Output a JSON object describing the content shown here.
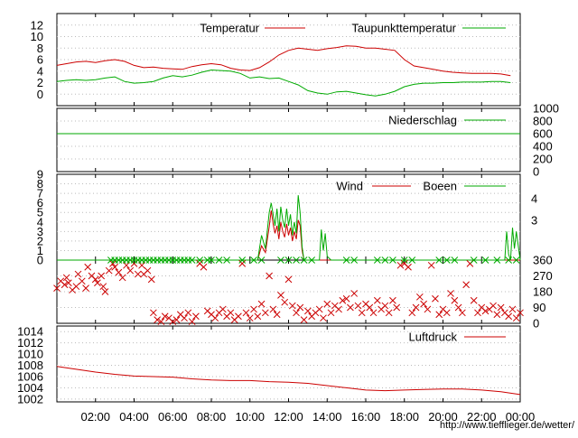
{
  "chart_data": [
    {
      "type": "line",
      "panel": "temperature",
      "series": [
        {
          "name": "Temperatur",
          "color": "#cc0000",
          "x": [
            0,
            0.5,
            1,
            1.5,
            2,
            2.5,
            3,
            3.5,
            4,
            4.5,
            5,
            5.5,
            6,
            6.5,
            7,
            7.5,
            8,
            8.5,
            9,
            9.5,
            10,
            10.5,
            11,
            11.5,
            12,
            12.5,
            13,
            13.5,
            14,
            14.5,
            15,
            15.5,
            16,
            16.5,
            17,
            17.5,
            18,
            18.5,
            19,
            19.5,
            20,
            20.5,
            21,
            21.5,
            22,
            22.5,
            23,
            23.5
          ],
          "values": [
            5.0,
            5.3,
            5.6,
            5.7,
            5.5,
            5.8,
            6.0,
            5.7,
            5.0,
            4.6,
            4.7,
            4.5,
            4.4,
            4.3,
            4.8,
            5.1,
            5.3,
            5.1,
            4.5,
            4.2,
            4.1,
            4.6,
            5.6,
            6.8,
            7.6,
            8.0,
            7.8,
            7.6,
            7.9,
            8.1,
            8.4,
            8.3,
            8.0,
            8.0,
            7.8,
            7.6,
            6.0,
            4.9,
            4.6,
            4.3,
            4.0,
            3.8,
            3.7,
            3.6,
            3.6,
            3.6,
            3.5,
            3.2
          ]
        },
        {
          "name": "Taupunkttemperatur",
          "color": "#00aa00",
          "x": [
            0,
            0.5,
            1,
            1.5,
            2,
            2.5,
            3,
            3.5,
            4,
            4.5,
            5,
            5.5,
            6,
            6.5,
            7,
            7.5,
            8,
            8.5,
            9,
            9.5,
            10,
            10.5,
            11,
            11.5,
            12,
            12.5,
            13,
            13.5,
            14,
            14.5,
            15,
            15.5,
            16,
            16.5,
            17,
            17.5,
            18,
            18.5,
            19,
            19.5,
            20,
            20.5,
            21,
            21.5,
            22,
            22.5,
            23,
            23.5
          ],
          "values": [
            2.2,
            2.4,
            2.5,
            2.4,
            2.5,
            2.8,
            3.0,
            2.2,
            1.9,
            2.0,
            2.2,
            2.8,
            3.2,
            3.0,
            3.3,
            3.8,
            4.2,
            4.1,
            4.0,
            3.6,
            2.8,
            3.0,
            2.7,
            2.8,
            2.2,
            1.6,
            0.6,
            0.2,
            0.0,
            0.4,
            0.5,
            0.2,
            -0.1,
            -0.3,
            0.0,
            0.5,
            1.3,
            1.7,
            1.9,
            1.9,
            2.0,
            2.0,
            2.1,
            2.1,
            2.1,
            2.2,
            2.2,
            2.0
          ]
        }
      ],
      "ylim": [
        -2,
        14
      ],
      "yticks": [
        0,
        2,
        4,
        6,
        8,
        10,
        12
      ],
      "grid": true,
      "legend": "top"
    },
    {
      "type": "line",
      "panel": "precipitation",
      "series": [
        {
          "name": "Niederschlag",
          "color": "#00aa00",
          "x": [
            0,
            24
          ],
          "values": [
            600,
            600
          ]
        }
      ],
      "ylim": [
        0,
        1000
      ],
      "yticks": [
        0,
        200,
        400,
        600,
        800,
        1000
      ],
      "yaxis_side": "right",
      "legend": "top-right"
    },
    {
      "type": "line",
      "panel": "wind",
      "series": [
        {
          "name": "Wind",
          "color": "#cc0000",
          "x": [
            0,
            10.4,
            10.6,
            10.8,
            11.0,
            11.1,
            11.2,
            11.3,
            11.4,
            11.5,
            11.6,
            11.7,
            11.8,
            11.9,
            12.0,
            12.1,
            12.2,
            12.3,
            12.4,
            12.5,
            12.6,
            12.7,
            12.8,
            13.0,
            24
          ],
          "values": [
            0,
            0,
            1.5,
            0.8,
            3.5,
            5.2,
            3.8,
            2.8,
            3.6,
            2.2,
            4.0,
            3.0,
            2.4,
            3.8,
            2.6,
            3.4,
            2.0,
            3.0,
            2.2,
            4.2,
            3.6,
            1.0,
            0,
            0,
            0
          ]
        },
        {
          "name": "Boeen",
          "color": "#00aa00",
          "x": [
            0,
            10.4,
            10.6,
            10.8,
            11.0,
            11.1,
            11.2,
            11.3,
            11.4,
            11.5,
            11.6,
            11.7,
            11.8,
            11.9,
            12.0,
            12.1,
            12.2,
            12.3,
            12.4,
            12.5,
            12.6,
            12.7,
            12.8,
            13.0,
            13.6,
            13.7,
            13.8,
            13.9,
            14.0,
            14.2,
            23.2,
            23.3,
            23.4,
            23.5,
            23.6,
            23.7,
            23.8,
            24
          ],
          "values": [
            0,
            0,
            2.6,
            1.2,
            5.0,
            6.0,
            4.8,
            3.6,
            5.4,
            3.0,
            5.6,
            4.2,
            3.4,
            5.4,
            3.6,
            4.8,
            2.6,
            4.0,
            2.8,
            6.8,
            5.0,
            1.4,
            0,
            0,
            0,
            3.2,
            1.0,
            2.8,
            0.4,
            0,
            0,
            3.0,
            0.6,
            0,
            3.4,
            1.2,
            3.0,
            0
          ]
        }
      ],
      "ylim": [
        0,
        9
      ],
      "yticks": [
        0,
        1,
        2,
        3,
        4,
        5,
        6,
        7,
        8,
        9
      ],
      "right_scale_labels": [
        "4",
        "3"
      ],
      "legend": "top-right"
    },
    {
      "type": "scatter",
      "panel": "wind-direction",
      "series": [
        {
          "name": "",
          "color": "#cc0000",
          "x": [
            0.0,
            0.2,
            0.4,
            0.5,
            0.6,
            0.8,
            1.0,
            1.1,
            1.3,
            1.5,
            1.6,
            1.8,
            2.0,
            2.1,
            2.3,
            2.4,
            2.5,
            2.7,
            2.9,
            3.0,
            3.2,
            3.4,
            3.6,
            3.8,
            4.0,
            4.2,
            4.4,
            4.5,
            4.7,
            4.9,
            5.0,
            5.2,
            5.4,
            5.6,
            5.8,
            6.0,
            6.2,
            6.4,
            6.6,
            6.8,
            7.0,
            7.2,
            7.4,
            7.6,
            7.8,
            8.0,
            8.2,
            8.4,
            8.6,
            8.8,
            9.0,
            9.2,
            9.4,
            9.6,
            9.8,
            10.0,
            10.2,
            10.4,
            10.6,
            10.8,
            11.0,
            11.2,
            11.4,
            11.6,
            11.8,
            12.0,
            12.2,
            12.4,
            12.6,
            12.8,
            13.0,
            13.2,
            13.4,
            13.6,
            13.8,
            14.0,
            14.2,
            14.4,
            14.6,
            14.8,
            15.0,
            15.2,
            15.4,
            15.6,
            15.8,
            16.0,
            16.2,
            16.4,
            16.6,
            16.8,
            17.0,
            17.2,
            17.4,
            17.6,
            17.8,
            18.0,
            18.2,
            18.4,
            18.6,
            18.8,
            19.0,
            19.2,
            19.4,
            19.6,
            19.8,
            20.0,
            20.2,
            20.4,
            20.6,
            20.8,
            21.0,
            21.2,
            21.4,
            21.6,
            21.8,
            22.0,
            22.2,
            22.4,
            22.6,
            22.8,
            23.0,
            23.2,
            23.4,
            23.6,
            23.8,
            24.0
          ],
          "values": [
            200,
            240,
            220,
            260,
            230,
            190,
            210,
            280,
            240,
            200,
            320,
            270,
            250,
            230,
            270,
            210,
            180,
            300,
            340,
            320,
            290,
            260,
            330,
            300,
            340,
            280,
            330,
            280,
            300,
            250,
            60,
            20,
            10,
            40,
            30,
            10,
            20,
            50,
            30,
            60,
            10,
            40,
            340,
            320,
            70,
            50,
            30,
            60,
            80,
            40,
            60,
            20,
            40,
            340,
            60,
            30,
            80,
            40,
            110,
            60,
            270,
            80,
            50,
            160,
            120,
            250,
            100,
            60,
            90,
            20,
            70,
            40,
            60,
            80,
            30,
            110,
            60,
            100,
            80,
            130,
            140,
            90,
            170,
            100,
            60,
            110,
            90,
            60,
            130,
            80,
            100,
            60,
            130,
            90,
            330,
            340,
            320,
            60,
            90,
            150,
            110,
            80,
            330,
            140,
            50,
            80,
            60,
            170,
            130,
            90,
            60,
            220,
            340,
            130,
            60,
            90,
            70,
            80,
            100,
            50,
            90,
            60,
            40,
            80,
            30,
            60
          ]
        },
        {
          "name": "",
          "color": "#00aa00",
          "x": [
            2.8,
            3.0,
            3.2,
            3.4,
            3.6,
            3.8,
            4.0,
            4.2,
            4.4,
            4.6,
            4.8,
            5.0,
            5.2,
            5.4,
            5.6,
            5.8,
            6.0,
            6.2,
            6.4,
            6.6,
            6.8,
            7.0,
            7.4,
            7.8,
            8.0,
            8.4,
            8.8,
            9.6,
            10.2,
            10.6,
            11.6,
            12.0,
            12.4,
            12.8,
            13.2,
            15.0,
            15.4,
            16.6,
            17.0,
            17.4,
            18.0,
            18.4,
            19.8,
            20.2,
            20.6,
            21.6,
            22.2,
            22.8,
            23.4,
            23.8
          ],
          "values": [
            360,
            360,
            360,
            360,
            360,
            360,
            360,
            360,
            360,
            360,
            360,
            360,
            360,
            360,
            360,
            360,
            360,
            360,
            360,
            360,
            360,
            360,
            360,
            360,
            360,
            360,
            360,
            360,
            360,
            360,
            360,
            360,
            360,
            360,
            360,
            360,
            360,
            360,
            360,
            360,
            360,
            360,
            360,
            360,
            360,
            360,
            360,
            360,
            360,
            360
          ]
        }
      ],
      "ylim": [
        0,
        360
      ],
      "yticks": [
        0,
        90,
        180,
        270,
        360
      ],
      "yaxis_side": "right"
    },
    {
      "type": "line",
      "panel": "pressure",
      "series": [
        {
          "name": "Luftdruck",
          "color": "#cc0000",
          "x": [
            0,
            1,
            2,
            3,
            4,
            5,
            6,
            7,
            8,
            9,
            10,
            11,
            12,
            13,
            14,
            15,
            16,
            17,
            18,
            19,
            20,
            21,
            22,
            23,
            24
          ],
          "values": [
            1007.8,
            1007.3,
            1006.8,
            1006.4,
            1006.1,
            1006.0,
            1005.9,
            1005.6,
            1005.4,
            1005.3,
            1005.3,
            1005.1,
            1005.0,
            1004.8,
            1004.4,
            1004.0,
            1003.6,
            1003.5,
            1003.6,
            1003.7,
            1003.8,
            1003.8,
            1003.6,
            1003.3,
            1002.8
          ]
        }
      ],
      "ylim": [
        1001.5,
        1015
      ],
      "yticks": [
        1002,
        1004,
        1006,
        1008,
        1010,
        1012,
        1014
      ],
      "legend": "top-right"
    }
  ],
  "xaxis": {
    "range": [
      0,
      24
    ],
    "tick_labels": [
      "02:00",
      "04:00",
      "06:00",
      "08:00",
      "10:00",
      "12:00",
      "14:00",
      "16:00",
      "18:00",
      "20:00",
      "22:00",
      "00:00"
    ],
    "tick_hours": [
      2,
      4,
      6,
      8,
      10,
      12,
      14,
      16,
      18,
      20,
      22,
      24
    ]
  },
  "footer": {
    "url": "http://www.tiefflieger.de/wetter/"
  }
}
